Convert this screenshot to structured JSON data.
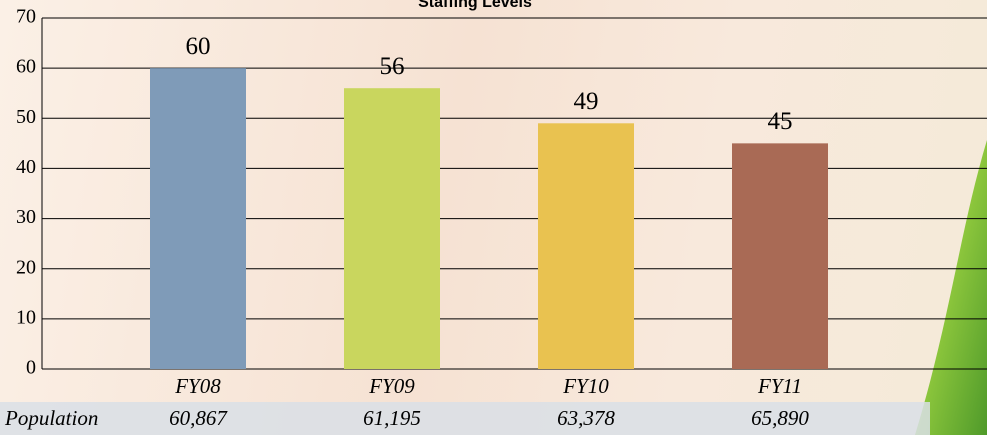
{
  "chart_data": {
    "type": "bar",
    "title": "Staffing Levels",
    "categories": [
      "FY08",
      "FY09",
      "FY10",
      "FY11"
    ],
    "values": [
      60,
      56,
      49,
      45
    ],
    "colors": [
      "#7f9bb8",
      "#c9d65e",
      "#e9c250",
      "#a96a55"
    ],
    "ylim": [
      0,
      70
    ],
    "yticks": [
      0,
      10,
      20,
      30,
      40,
      50,
      60,
      70
    ],
    "grid": true
  },
  "population_row": {
    "label": "Population",
    "values": [
      "60,867",
      "61,195",
      "63,378",
      "65,890"
    ]
  }
}
